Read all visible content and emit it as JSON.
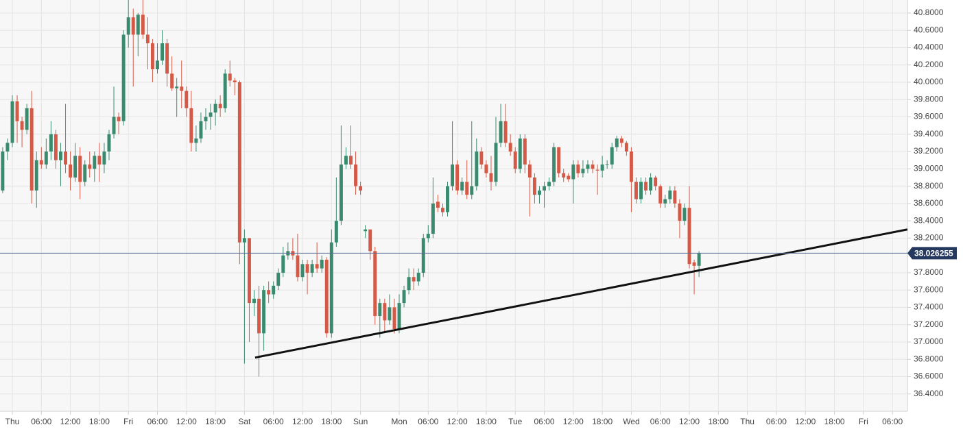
{
  "chart_data": {
    "type": "candlestick",
    "up_color": "#3a8b6e",
    "down_color": "#d45a47",
    "grid": true,
    "xlim": [
      -2.55,
      185.1
    ],
    "ylim": [
      36.2,
      40.95
    ],
    "xticks": [
      {
        "value": 0,
        "label": "Thu"
      },
      {
        "value": 6,
        "label": "06:00"
      },
      {
        "value": 12,
        "label": "12:00"
      },
      {
        "value": 18,
        "label": "18:00"
      },
      {
        "value": 24,
        "label": "Fri"
      },
      {
        "value": 30,
        "label": "06:00"
      },
      {
        "value": 36,
        "label": "12:00"
      },
      {
        "value": 42,
        "label": "18:00"
      },
      {
        "value": 48,
        "label": "Sat"
      },
      {
        "value": 54,
        "label": "06:00"
      },
      {
        "value": 60,
        "label": "12:00"
      },
      {
        "value": 66,
        "label": "18:00"
      },
      {
        "value": 72,
        "label": "Sun"
      },
      {
        "value": 80,
        "label": "Mon"
      },
      {
        "value": 86,
        "label": "06:00"
      },
      {
        "value": 92,
        "label": "12:00"
      },
      {
        "value": 98,
        "label": "18:00"
      },
      {
        "value": 104,
        "label": "Tue"
      },
      {
        "value": 110,
        "label": "06:00"
      },
      {
        "value": 116,
        "label": "12:00"
      },
      {
        "value": 122,
        "label": "18:00"
      },
      {
        "value": 128,
        "label": "Wed"
      },
      {
        "value": 134,
        "label": "06:00"
      },
      {
        "value": 140,
        "label": "12:00"
      },
      {
        "value": 146,
        "label": "18:00"
      },
      {
        "value": 152,
        "label": "Thu"
      },
      {
        "value": 158,
        "label": "06:00"
      },
      {
        "value": 164,
        "label": "12:00"
      },
      {
        "value": 170,
        "label": "18:00"
      },
      {
        "value": 176,
        "label": "Fri"
      },
      {
        "value": 182,
        "label": "06:00"
      }
    ],
    "yticks": [
      {
        "value": 36.4,
        "label": "36.4000"
      },
      {
        "value": 36.6,
        "label": "36.6000"
      },
      {
        "value": 36.8,
        "label": "36.8000"
      },
      {
        "value": 37.0,
        "label": "37.0000"
      },
      {
        "value": 37.2,
        "label": "37.2000"
      },
      {
        "value": 37.4,
        "label": "37.4000"
      },
      {
        "value": 37.6,
        "label": "37.6000"
      },
      {
        "value": 37.8,
        "label": "37.8000"
      },
      {
        "value": 38.2,
        "label": "38.2000"
      },
      {
        "value": 38.4,
        "label": "38.4000"
      },
      {
        "value": 38.6,
        "label": "38.6000"
      },
      {
        "value": 38.8,
        "label": "38.8000"
      },
      {
        "value": 39.0,
        "label": "39.0000"
      },
      {
        "value": 39.2,
        "label": "39.2000"
      },
      {
        "value": 39.4,
        "label": "39.4000"
      },
      {
        "value": 39.6,
        "label": "39.6000"
      },
      {
        "value": 39.8,
        "label": "39.8000"
      },
      {
        "value": 40.0,
        "label": "40.0000"
      },
      {
        "value": 40.2,
        "label": "40.2000"
      },
      {
        "value": 40.4,
        "label": "40.4000"
      },
      {
        "value": 40.6,
        "label": "40.6000"
      },
      {
        "value": 40.8,
        "label": "40.8000"
      }
    ],
    "price_line": 38.026255,
    "trendline": {
      "x": [
        50.2,
        185.1
      ],
      "y": [
        36.82,
        38.3
      ]
    },
    "x": [
      -2,
      -1,
      0,
      1,
      2,
      3,
      4,
      5,
      6,
      7,
      8,
      9,
      10,
      11,
      12,
      13,
      14,
      15,
      16,
      17,
      18,
      19,
      20,
      21,
      22,
      23,
      24,
      25,
      26,
      27,
      28,
      29,
      30,
      31,
      32,
      33,
      34,
      35,
      36,
      37,
      38,
      39,
      40,
      41,
      42,
      43,
      44,
      45,
      46,
      47,
      48,
      49,
      50,
      51,
      52,
      53,
      54,
      55,
      56,
      57,
      58,
      59,
      60,
      61,
      62,
      63,
      64,
      65,
      66,
      67,
      68,
      69,
      70,
      71,
      72,
      73,
      74,
      75,
      76,
      77,
      78,
      79,
      80,
      81,
      82,
      83,
      84,
      85,
      86,
      87,
      88,
      89,
      90,
      91,
      92,
      93,
      94,
      95,
      96,
      97,
      98,
      99,
      100,
      101,
      102,
      103,
      104,
      105,
      106,
      107,
      108,
      109,
      110,
      111,
      112,
      113,
      114,
      115,
      116,
      117,
      118,
      119,
      120,
      121,
      122,
      123,
      124,
      125,
      126,
      127,
      128,
      129,
      130,
      131,
      132,
      133,
      134,
      135,
      136,
      137,
      138,
      139,
      140,
      141,
      142
    ],
    "open": [
      38.75,
      39.2,
      39.3,
      39.78,
      39.55,
      39.45,
      39.7,
      38.75,
      39.1,
      39.05,
      39.2,
      39.4,
      39.1,
      39.2,
      39.05,
      38.9,
      39.15,
      38.85,
      39.05,
      39.0,
      39.15,
      39.05,
      39.2,
      39.4,
      39.6,
      39.55,
      40.55,
      40.75,
      40.55,
      40.78,
      40.55,
      40.45,
      40.15,
      40.25,
      40.45,
      40.1,
      39.93,
      39.95,
      39.9,
      39.7,
      39.3,
      39.35,
      39.55,
      39.6,
      39.65,
      39.75,
      39.7,
      40.1,
      40.02,
      40.0,
      38.15,
      38.2,
      37.45,
      37.5,
      37.1,
      37.6,
      37.55,
      37.65,
      37.8,
      38.0,
      38.05,
      38.0,
      37.75,
      37.9,
      37.8,
      37.9,
      37.85,
      37.95,
      37.1,
      38.15,
      38.4,
      39.05,
      39.15,
      39.05,
      38.8,
      38.28,
      38.3,
      38.05,
      37.3,
      37.45,
      37.25,
      37.4,
      37.15,
      37.45,
      37.6,
      37.75,
      37.7,
      37.8,
      38.2,
      38.25,
      38.62,
      38.55,
      38.5,
      38.8,
      39.05,
      38.75,
      38.85,
      38.7,
      38.8,
      39.2,
      39.05,
      38.95,
      38.85,
      39.3,
      39.55,
      39.3,
      39.2,
      39.0,
      39.35,
      39.05,
      38.9,
      38.7,
      38.75,
      38.8,
      38.85,
      39.25,
      38.95,
      38.92,
      38.88,
      39.05,
      38.95,
      39.0,
      39.05,
      38.99,
      38.98,
      39.05,
      39.05,
      39.25,
      39.35,
      39.3,
      39.2,
      38.85,
      38.65,
      38.85,
      38.75,
      38.9,
      38.8,
      38.6,
      38.65,
      38.75,
      38.6,
      38.4,
      38.55,
      37.92,
      37.88
    ],
    "high": [
      39.25,
      39.35,
      39.85,
      39.85,
      39.6,
      39.75,
      39.9,
      39.2,
      39.25,
      39.35,
      39.55,
      39.45,
      39.3,
      39.75,
      39.2,
      39.3,
      39.25,
      39.1,
      39.2,
      39.2,
      39.3,
      39.3,
      39.45,
      39.95,
      39.65,
      40.6,
      40.95,
      40.85,
      40.8,
      40.95,
      40.75,
      40.5,
      40.45,
      40.6,
      40.5,
      40.3,
      40.05,
      40.25,
      39.95,
      39.9,
      39.5,
      39.65,
      39.7,
      39.75,
      39.8,
      39.85,
      40.15,
      40.25,
      40.05,
      40.02,
      38.3,
      38.2,
      37.6,
      37.65,
      37.65,
      37.7,
      37.7,
      37.85,
      38.1,
      38.15,
      38.2,
      38.25,
      37.95,
      37.95,
      37.95,
      38.15,
      38.0,
      37.98,
      38.3,
      38.9,
      39.5,
      39.25,
      39.5,
      39.2,
      38.85,
      38.35,
      38.3,
      38.1,
      37.5,
      37.5,
      37.55,
      37.5,
      37.55,
      37.65,
      37.85,
      37.85,
      37.85,
      38.25,
      38.35,
      38.9,
      38.7,
      38.6,
      38.85,
      39.55,
      39.1,
      38.9,
      39.1,
      39.55,
      39.35,
      39.25,
      39.1,
      39.15,
      39.6,
      39.75,
      39.75,
      39.4,
      39.25,
      39.4,
      39.4,
      39.1,
      38.95,
      38.8,
      38.85,
      38.9,
      39.3,
      39.25,
      39.0,
      38.95,
      39.1,
      39.1,
      39.1,
      39.1,
      39.1,
      39.05,
      39.15,
      39.1,
      39.3,
      39.38,
      39.38,
      39.32,
      39.25,
      38.9,
      38.9,
      38.9,
      38.95,
      38.92,
      38.82,
      38.7,
      38.8,
      38.8,
      38.65,
      38.6,
      38.8,
      37.95,
      38.05
    ],
    "low": [
      38.72,
      39.1,
      39.25,
      39.3,
      39.25,
      39.4,
      38.6,
      38.55,
      39.0,
      39.0,
      39.1,
      39.0,
      38.8,
      38.95,
      38.75,
      38.85,
      38.65,
      38.8,
      38.9,
      38.85,
      38.85,
      38.95,
      39.1,
      39.35,
      39.4,
      39.5,
      40.4,
      39.95,
      40.3,
      40.5,
      40.15,
      40.0,
      40.1,
      40.2,
      39.95,
      39.9,
      39.6,
      39.7,
      39.6,
      39.2,
      39.2,
      39.3,
      39.45,
      39.45,
      39.5,
      39.6,
      39.65,
      39.95,
      39.85,
      37.9,
      36.75,
      37.0,
      37.3,
      36.6,
      36.9,
      37.45,
      37.5,
      37.6,
      37.75,
      37.95,
      37.95,
      37.7,
      37.7,
      37.55,
      37.75,
      37.8,
      37.8,
      37.05,
      37.05,
      38.1,
      38.35,
      39.0,
      39.0,
      38.7,
      38.7,
      38.2,
      37.95,
      37.2,
      37.05,
      37.1,
      37.2,
      37.1,
      37.1,
      37.4,
      37.55,
      37.6,
      37.65,
      37.75,
      38.15,
      38.2,
      38.5,
      38.45,
      38.45,
      38.75,
      38.7,
      38.7,
      38.65,
      38.65,
      38.75,
      39.0,
      38.9,
      38.75,
      38.8,
      39.25,
      39.25,
      39.15,
      38.95,
      38.95,
      38.95,
      38.45,
      38.6,
      38.6,
      38.55,
      38.75,
      38.8,
      38.9,
      38.85,
      38.85,
      38.6,
      38.9,
      38.9,
      38.95,
      38.95,
      38.7,
      38.9,
      39.0,
      39.0,
      39.2,
      39.25,
      39.15,
      38.5,
      38.6,
      38.6,
      38.7,
      38.7,
      38.75,
      38.55,
      38.55,
      38.6,
      38.55,
      38.2,
      38.35,
      37.85,
      37.55,
      37.75
    ],
    "close": [
      39.2,
      39.3,
      39.78,
      39.55,
      39.45,
      39.7,
      38.75,
      39.1,
      39.05,
      39.2,
      39.4,
      39.1,
      39.2,
      39.05,
      38.9,
      39.15,
      38.85,
      39.05,
      39.0,
      39.15,
      39.05,
      39.2,
      39.4,
      39.6,
      39.55,
      40.55,
      40.75,
      40.55,
      40.78,
      40.55,
      40.45,
      40.15,
      40.25,
      40.45,
      40.1,
      39.93,
      39.95,
      39.9,
      39.7,
      39.3,
      39.35,
      39.55,
      39.6,
      39.65,
      39.75,
      39.7,
      40.1,
      40.02,
      40.0,
      38.15,
      38.2,
      37.45,
      37.5,
      37.1,
      37.6,
      37.55,
      37.65,
      37.8,
      38.0,
      38.05,
      38.0,
      37.75,
      37.9,
      37.8,
      37.9,
      37.85,
      37.95,
      37.1,
      38.15,
      38.4,
      39.05,
      39.15,
      39.05,
      38.8,
      38.75,
      38.3,
      38.05,
      37.3,
      37.45,
      37.25,
      37.4,
      37.15,
      37.45,
      37.6,
      37.75,
      37.7,
      37.8,
      38.2,
      38.25,
      38.6,
      38.55,
      38.5,
      38.8,
      39.05,
      38.75,
      38.85,
      38.7,
      38.8,
      39.2,
      39.05,
      38.95,
      38.85,
      39.3,
      39.55,
      39.3,
      39.2,
      39.0,
      39.35,
      39.05,
      38.9,
      38.7,
      38.75,
      38.8,
      38.85,
      39.25,
      38.95,
      38.9,
      38.88,
      39.05,
      38.95,
      39.0,
      39.05,
      39.0,
      38.98,
      39.05,
      39.05,
      39.25,
      39.35,
      39.3,
      39.2,
      38.85,
      38.65,
      38.85,
      38.75,
      38.9,
      38.8,
      38.6,
      38.65,
      38.75,
      38.6,
      38.4,
      38.55,
      37.9,
      37.88,
      38.026255
    ]
  }
}
